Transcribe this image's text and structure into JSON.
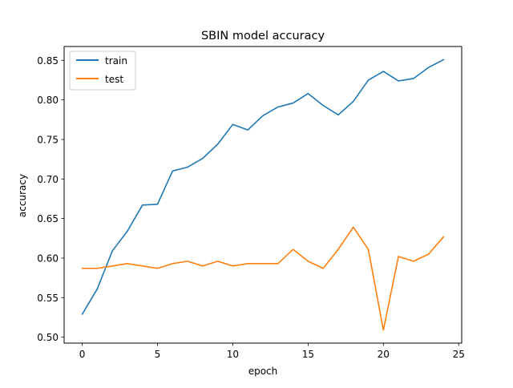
{
  "chart_data": {
    "type": "line",
    "title": "SBIN model accuracy",
    "xlabel": "epoch",
    "ylabel": "accuracy",
    "xlim": [
      -1.2,
      25.2
    ],
    "ylim": [
      0.4925,
      0.8675
    ],
    "xticks": [
      0,
      5,
      10,
      15,
      20,
      25
    ],
    "xtick_labels": [
      "0",
      "5",
      "10",
      "15",
      "20",
      "25"
    ],
    "yticks": [
      0.5,
      0.55,
      0.6,
      0.65,
      0.7,
      0.75,
      0.8,
      0.85
    ],
    "ytick_labels": [
      "0.50",
      "0.55",
      "0.60",
      "0.65",
      "0.70",
      "0.75",
      "0.80",
      "0.85"
    ],
    "grid": false,
    "legend_position": "upper left",
    "x": [
      0,
      1,
      2,
      3,
      4,
      5,
      6,
      7,
      8,
      9,
      10,
      11,
      12,
      13,
      14,
      15,
      16,
      17,
      18,
      19,
      20,
      21,
      22,
      23,
      24
    ],
    "series": [
      {
        "name": "train",
        "color": "#1f77b4",
        "values": [
          0.529,
          0.561,
          0.609,
          0.634,
          0.667,
          0.668,
          0.71,
          0.715,
          0.726,
          0.744,
          0.769,
          0.762,
          0.78,
          0.791,
          0.796,
          0.808,
          0.793,
          0.781,
          0.798,
          0.825,
          0.836,
          0.824,
          0.827,
          0.841,
          0.851
        ]
      },
      {
        "name": "test",
        "color": "#ff7f0e",
        "values": [
          0.587,
          0.587,
          0.59,
          0.593,
          0.59,
          0.587,
          0.593,
          0.596,
          0.59,
          0.596,
          0.59,
          0.593,
          0.593,
          0.593,
          0.611,
          0.596,
          0.587,
          0.611,
          0.639,
          0.611,
          0.509,
          0.602,
          0.596,
          0.605,
          0.627
        ]
      }
    ]
  }
}
